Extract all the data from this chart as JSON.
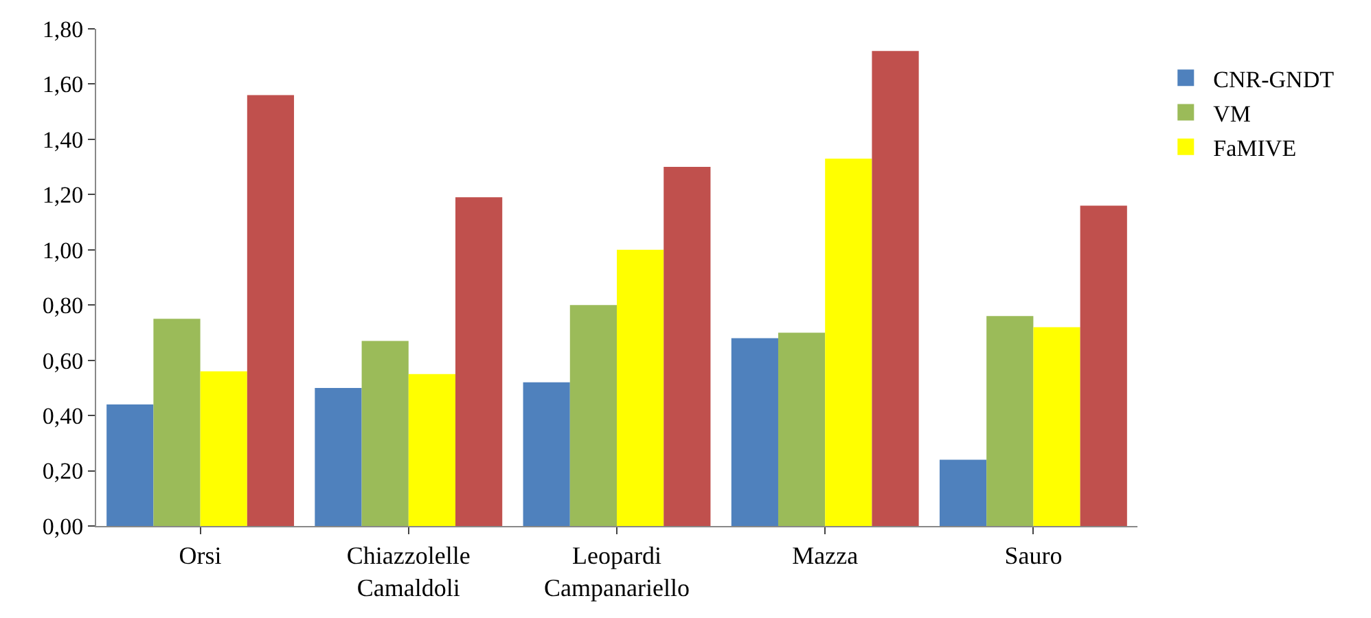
{
  "chart_data": {
    "type": "bar",
    "categories": [
      "Orsi",
      "Chiazzolelle\nCamaldoli",
      "Leopardi\nCampanariello",
      "Mazza",
      "Sauro"
    ],
    "series": [
      {
        "name": "CNR-GNDT",
        "color": "#4f81bd",
        "values": [
          0.44,
          0.5,
          0.52,
          0.68,
          0.24
        ]
      },
      {
        "name": "VM",
        "color": "#9bbb59",
        "values": [
          0.75,
          0.67,
          0.8,
          0.7,
          0.76
        ]
      },
      {
        "name": "FaMIVE",
        "color": "#ffff00",
        "values": [
          0.56,
          0.55,
          1.0,
          1.33,
          0.72
        ]
      },
      {
        "color": "#c0504d",
        "values": [
          1.56,
          1.19,
          1.3,
          1.72,
          1.16
        ]
      }
    ],
    "ylim": [
      0,
      1.8
    ],
    "yticks": [
      {
        "value": 0,
        "label": "0,00"
      },
      {
        "value": 0.2,
        "label": "0,20"
      },
      {
        "value": 0.4,
        "label": "0,40"
      },
      {
        "value": 0.6,
        "label": "0,60"
      },
      {
        "value": 0.8,
        "label": "0,80"
      },
      {
        "value": 1.0,
        "label": "1,00"
      },
      {
        "value": 1.2,
        "label": "1,20"
      },
      {
        "value": 1.4,
        "label": "1,40"
      },
      {
        "value": 1.6,
        "label": "1,60"
      },
      {
        "value": 1.8,
        "label": "1,80"
      }
    ],
    "grid": false,
    "legend": "right"
  }
}
